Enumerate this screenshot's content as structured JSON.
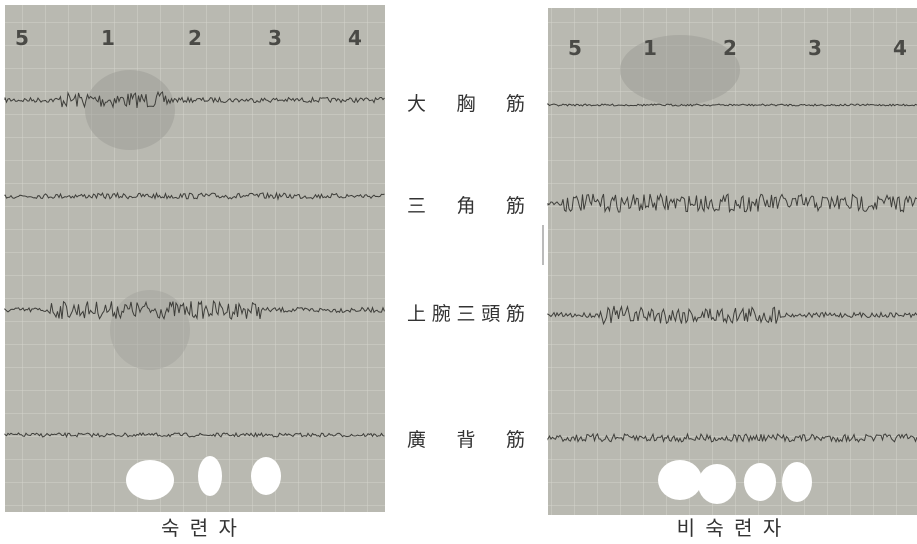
{
  "panels": [
    {
      "column_labels": [
        "5",
        "1",
        "2",
        "3",
        "4"
      ],
      "caption": "숙 련 자"
    },
    {
      "column_labels": [
        "5",
        "1",
        "2",
        "3",
        "4"
      ],
      "caption": "비 숙 련 자"
    }
  ],
  "muscles": [
    "大 胸 筋",
    "三 角 筋",
    "上腕三頭筋",
    "廣 背 筋"
  ]
}
